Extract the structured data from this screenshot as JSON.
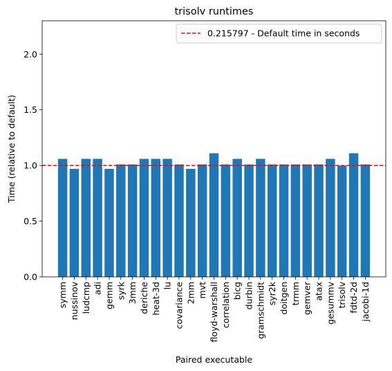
{
  "chart_data": {
    "type": "bar",
    "title": "trisolv runtimes",
    "xlabel": "Paired executable",
    "ylabel": "Time (relative to default)",
    "ylim": [
      0,
      2.3
    ],
    "yticks": [
      "0.0",
      "0.5",
      "1.0",
      "1.5",
      "2.0"
    ],
    "grid": false,
    "legend_position": "top-right",
    "bar_color": "#1f77b4",
    "reference_line": {
      "y": 1.0,
      "color": "#ff0000",
      "style": "dashed",
      "label": "0.215797 - Default time in seconds"
    },
    "categories": [
      "symm",
      "nussinov",
      "ludcmp",
      "adi",
      "gemm",
      "syrk",
      "3mm",
      "deriche",
      "heat-3d",
      "lu",
      "covariance",
      "2mm",
      "mvt",
      "floyd-warshall",
      "correlation",
      "bicg",
      "durbin",
      "gramschmidt",
      "syr2k",
      "doitgen",
      "trmm",
      "gemver",
      "atax",
      "gesummv",
      "trisolv",
      "fdtd-2d",
      "jacobi-1d"
    ],
    "values": [
      1.06,
      0.97,
      1.06,
      1.06,
      0.97,
      1.01,
      1.01,
      1.06,
      1.06,
      1.06,
      1.01,
      0.97,
      1.01,
      1.11,
      1.01,
      1.06,
      1.01,
      1.06,
      1.01,
      1.01,
      1.01,
      1.01,
      1.01,
      1.06,
      1.0,
      1.11,
      1.01
    ]
  }
}
